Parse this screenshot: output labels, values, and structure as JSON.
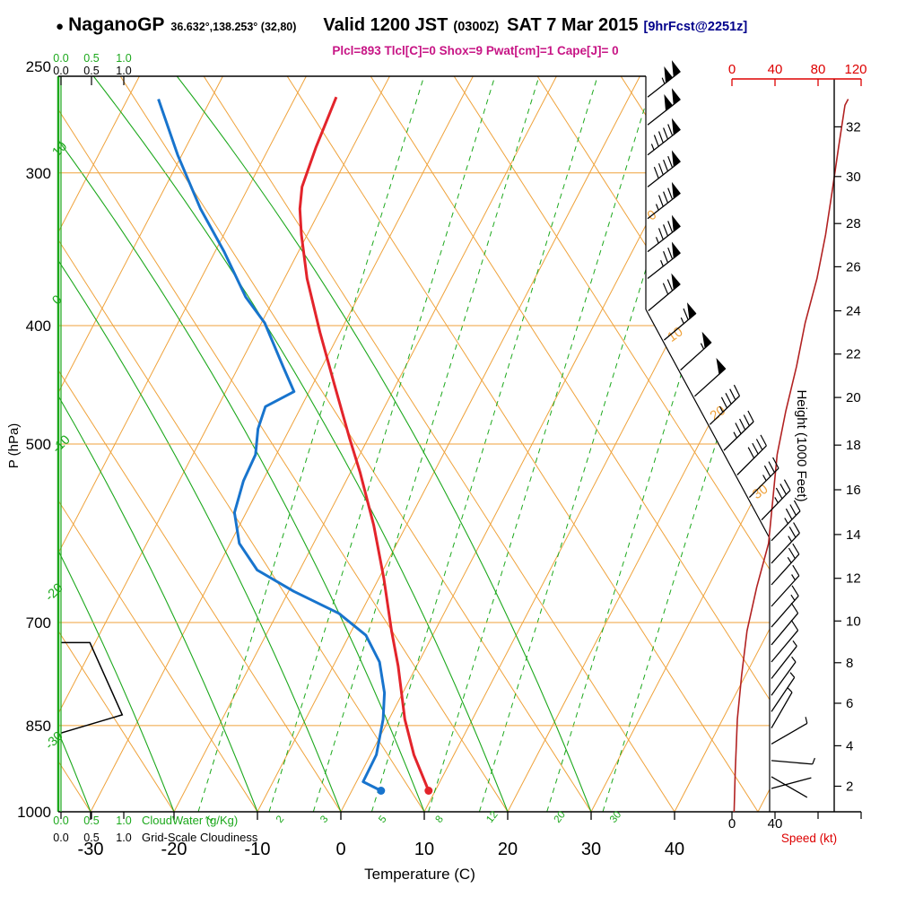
{
  "header": {
    "bullet": "●",
    "station": "NaganoGP",
    "coords": "36.632°,138.253° (32,80)",
    "valid": "Valid 1200 JST",
    "valid_z": "(0300Z)",
    "date": "SAT 7 Mar 2015",
    "fcst": "[9hrFcst@2251z]",
    "params": "Plcl=893 Tlcl[C]=0 Shox=9 Pwat[cm]=1 Cape[J]= 0"
  },
  "colors": {
    "orange": "#EFA23B",
    "green": "#1CA81C",
    "red_profile": "#E3242B",
    "blue_profile": "#1874CD",
    "dark_red": "#B22222",
    "red_axis": "#DD0000",
    "magenta": "#C71585",
    "navy": "#00008B"
  },
  "chart_data": {
    "type": "line",
    "variant": "skew-t log-p sounding (emagram)",
    "pressure_axis": {
      "label": "P (hPa)",
      "scale": "log",
      "ticks": [
        250,
        300,
        400,
        500,
        700,
        850,
        1000
      ]
    },
    "temperature_axis": {
      "label": "Temperature (C)",
      "unit": "C",
      "ticks": [
        -30,
        -20,
        -10,
        0,
        10,
        20,
        30,
        40
      ]
    },
    "height_axis": {
      "label": "Height (1000 Feet)",
      "ticks_kft_vs_hpa": [
        [
          2,
          953
        ],
        [
          4,
          883
        ],
        [
          6,
          815
        ],
        [
          8,
          755
        ],
        [
          10,
          698
        ],
        [
          12,
          644
        ],
        [
          14,
          593
        ],
        [
          16,
          545
        ],
        [
          18,
          501
        ],
        [
          20,
          458
        ],
        [
          22,
          422
        ],
        [
          24,
          389
        ],
        [
          26,
          358
        ],
        [
          28,
          330
        ],
        [
          30,
          302
        ],
        [
          32,
          275
        ]
      ]
    },
    "speed_axis": {
      "label": "Speed (kt)",
      "ticks": [
        0,
        40,
        80,
        120
      ],
      "bottom_tick_labels": [
        "0",
        "40"
      ]
    },
    "cloud_scales": {
      "tick_labels": [
        "0.0",
        "0.5",
        "1.0"
      ],
      "green_label": "CloudWater (g/Kg)",
      "black_label": "Grid-Scale Cloudiness"
    },
    "isotherms": {
      "min": -80,
      "max": 50,
      "step": 10,
      "right_edge_labels": [
        0,
        10,
        20,
        30
      ]
    },
    "green_reference_lines": {
      "values": [
        -30,
        -20,
        -10,
        0,
        10,
        20,
        30
      ],
      "left_edge_labels": [
        {
          "value": 10,
          "text": "10"
        },
        {
          "value": 0,
          "text": "0"
        },
        {
          "value": -10,
          "text": "-10"
        },
        {
          "value": -20,
          "text": "-20"
        },
        {
          "value": -30,
          "text": "-30"
        }
      ]
    },
    "mixing_ratio_lines": [
      {
        "value": 1,
        "td_at_1000": -17.1
      },
      {
        "value": 2,
        "td_at_1000": -8.6
      },
      {
        "value": 3,
        "td_at_1000": -3.3
      },
      {
        "value": 5,
        "td_at_1000": 3.7
      },
      {
        "value": 8,
        "td_at_1000": 10.5
      },
      {
        "value": 12,
        "td_at_1000": 16.6
      },
      {
        "value": 20,
        "td_at_1000": 24.7
      },
      {
        "value": 30,
        "td_at_1000": 31.4
      }
    ],
    "temperature_profile_p_T": [
      [
        961,
        9.2
      ],
      [
        898,
        5.2
      ],
      [
        840,
        1.9
      ],
      [
        760,
        -2.2
      ],
      [
        711,
        -5.2
      ],
      [
        644,
        -9.4
      ],
      [
        583,
        -13.9
      ],
      [
        528,
        -18.8
      ],
      [
        494,
        -22.3
      ],
      [
        447,
        -27.4
      ],
      [
        405,
        -32.4
      ],
      [
        366,
        -37.3
      ],
      [
        337,
        -40.7
      ],
      [
        321,
        -42.5
      ],
      [
        308,
        -43.6
      ],
      [
        286,
        -44.4
      ],
      [
        260,
        -45.1
      ]
    ],
    "dewpoint_profile_p_Td": [
      [
        961,
        3.5
      ],
      [
        945,
        0.8
      ],
      [
        898,
        0.7
      ],
      [
        840,
        -0.7
      ],
      [
        799,
        -2.2
      ],
      [
        754,
        -4.7
      ],
      [
        717,
        -8.0
      ],
      [
        688,
        -12.6
      ],
      [
        660,
        -19.4
      ],
      [
        634,
        -25.1
      ],
      [
        603,
        -28.9
      ],
      [
        569,
        -31.4
      ],
      [
        536,
        -32.3
      ],
      [
        510,
        -32.5
      ],
      [
        486,
        -33.8
      ],
      [
        466,
        -34.3
      ],
      [
        453,
        -31.8
      ],
      [
        432,
        -34.7
      ],
      [
        398,
        -39.6
      ],
      [
        379,
        -43.5
      ],
      [
        348,
        -48.9
      ],
      [
        321,
        -54.4
      ],
      [
        290,
        -60.5
      ],
      [
        261,
        -66.3
      ]
    ],
    "wind_barbs_p_kt_ang": [
      [
        260,
        105,
        52
      ],
      [
        274,
        100,
        52
      ],
      [
        290,
        95,
        52
      ],
      [
        308,
        92,
        52
      ],
      [
        327,
        88,
        52
      ],
      [
        348,
        84,
        52
      ],
      [
        366,
        79,
        52
      ],
      [
        389,
        72,
        50
      ],
      [
        411,
        65,
        50
      ],
      [
        435,
        59,
        48
      ],
      [
        457,
        52,
        48
      ],
      [
        482,
        47,
        46
      ],
      [
        506,
        43,
        46
      ],
      [
        530,
        40,
        45
      ],
      [
        553,
        38,
        45
      ],
      [
        577,
        36,
        44
      ],
      [
        600,
        34,
        44
      ],
      [
        626,
        28,
        43
      ],
      [
        652,
        23,
        42
      ],
      [
        679,
        18,
        42
      ],
      [
        706,
        15,
        41
      ],
      [
        730,
        12,
        40
      ],
      [
        754,
        10,
        40
      ],
      [
        778,
        8,
        38
      ],
      [
        803,
        6,
        36
      ],
      [
        828,
        5,
        34
      ],
      [
        854,
        4,
        30
      ],
      [
        880,
        3,
        60
      ],
      [
        908,
        3,
        95
      ],
      [
        936,
        2,
        120
      ],
      [
        957,
        2,
        75
      ]
    ],
    "speed_profile_p_kt": [
      [
        1000,
        2
      ],
      [
        930,
        3
      ],
      [
        840,
        5
      ],
      [
        773,
        9
      ],
      [
        711,
        14
      ],
      [
        655,
        23
      ],
      [
        603,
        34
      ],
      [
        555,
        38
      ],
      [
        510,
        42
      ],
      [
        470,
        50
      ],
      [
        432,
        60
      ],
      [
        398,
        68
      ],
      [
        366,
        79
      ],
      [
        337,
        87
      ],
      [
        311,
        93
      ],
      [
        286,
        99
      ],
      [
        264,
        105
      ],
      [
        261,
        108
      ]
    ],
    "cloudiness_profile_frac_p": [
      [
        0,
        862
      ],
      [
        1.02,
        833
      ],
      [
        0.48,
        727
      ],
      [
        0,
        727
      ]
    ],
    "cloudwater_profile_gkg_p": [
      [
        0,
        1000
      ],
      [
        0,
        250
      ]
    ]
  }
}
